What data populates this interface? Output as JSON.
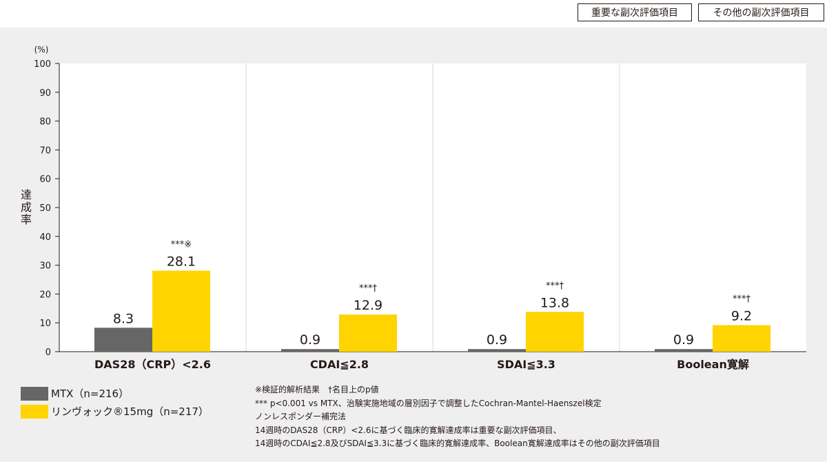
{
  "tabs": {
    "important": "重要な副次評価項目",
    "other": "その他の副次評価項目"
  },
  "chart_data": {
    "type": "bar",
    "unit_label": "(%)",
    "ylabel": "達成率",
    "ylim": [
      0,
      100
    ],
    "yticks": [
      0,
      10,
      20,
      30,
      40,
      50,
      60,
      70,
      80,
      90,
      100
    ],
    "categories": [
      "DAS28（CRP）<2.6",
      "CDAI≦2.8",
      "SDAI≦3.3",
      "Boolean寛解"
    ],
    "series": [
      {
        "name": "MTX（n=216）",
        "color": "#666666",
        "values": [
          8.3,
          0.9,
          0.9,
          0.9
        ],
        "labels": [
          "8.3",
          "0.9",
          "0.9",
          "0.9"
        ]
      },
      {
        "name": "リンヴォック®15mg（n=217）",
        "color": "#ffd400",
        "values": [
          28.1,
          12.9,
          13.8,
          9.2
        ],
        "labels": [
          "28.1",
          "12.9",
          "13.8",
          "9.2"
        ]
      }
    ],
    "significance": [
      "***※",
      "***†",
      "***†",
      "***†"
    ],
    "grid": false,
    "legend_position": "bottom-left"
  },
  "legend": [
    {
      "label": "MTX（n=216）",
      "color": "#666666"
    },
    {
      "label": "リンヴォック®15mg（n=217）",
      "color": "#ffd400"
    }
  ],
  "notes": [
    "※検証的解析結果　†名目上のp値",
    "*** p<0.001 vs MTX、治験実施地域の層別因子で調整したCochran-Mantel-Haenszel検定",
    "ノンレスポンダー補完法",
    "14週時のDAS28（CRP）<2.6に基づく臨床的寛解達成率は重要な副次評価項目、",
    "14週時のCDAI≦2.8及びSDAI≦3.3に基づく臨床的寛解達成率、Boolean寛解達成率はその他の副次評価項目"
  ]
}
